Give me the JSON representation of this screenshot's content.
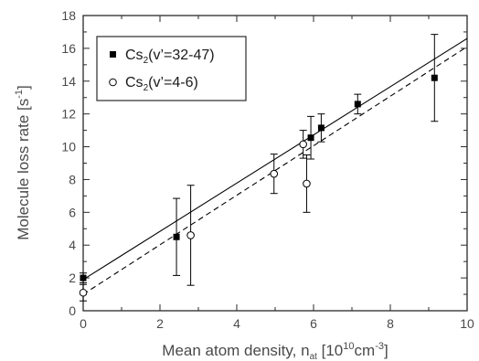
{
  "chart_data": {
    "type": "scatter",
    "xlabel": {
      "main": "Mean atom density, n",
      "sub": "at",
      "unit_open": " [10",
      "sup1": "10",
      "unit_mid": "cm",
      "sup2": "-3",
      "unit_close": "]"
    },
    "ylabel": {
      "main": "Molecule loss rate [s",
      "sup": "-1",
      "close": "]"
    },
    "xlim": [
      0,
      10
    ],
    "ylim": [
      0,
      18
    ],
    "xticks": [
      0,
      2,
      4,
      6,
      8,
      10
    ],
    "yticks": [
      0,
      2,
      4,
      6,
      8,
      10,
      12,
      14,
      16,
      18
    ],
    "grid": false,
    "legend_position": "top-left",
    "series": [
      {
        "name": "Cs2(v'=32-47)",
        "legend": {
          "pre": "Cs",
          "sub": "2",
          "post": "(v’=32-47)"
        },
        "marker": "filled-square",
        "color": "#000000",
        "points": [
          {
            "x": 0.0,
            "y": 2.0,
            "err": 0.3
          },
          {
            "x": 2.43,
            "y": 4.5,
            "err": 2.35
          },
          {
            "x": 5.93,
            "y": 10.55,
            "err": 1.3
          },
          {
            "x": 6.2,
            "y": 11.15,
            "err": 0.85
          },
          {
            "x": 7.15,
            "y": 12.6,
            "err": 0.6
          },
          {
            "x": 9.15,
            "y": 14.2,
            "err": 2.65
          }
        ],
        "fit": {
          "x": [
            0,
            10
          ],
          "y": [
            1.9,
            16.6
          ],
          "style": "solid"
        }
      },
      {
        "name": "Cs2(v'=4-6)",
        "legend": {
          "pre": "Cs",
          "sub": "2",
          "post": "(v’=4-6)"
        },
        "marker": "open-circle",
        "color": "#000000",
        "points": [
          {
            "x": 0.0,
            "y": 1.1,
            "err": 0.5
          },
          {
            "x": 2.8,
            "y": 4.6,
            "err": 3.05
          },
          {
            "x": 4.97,
            "y": 8.35,
            "err": 1.2
          },
          {
            "x": 5.73,
            "y": 10.15,
            "err": 0.85
          },
          {
            "x": 5.82,
            "y": 7.75,
            "err": 1.75
          }
        ],
        "fit": {
          "x": [
            0,
            10
          ],
          "y": [
            1.0,
            16.1
          ],
          "style": "dashed"
        }
      }
    ]
  }
}
